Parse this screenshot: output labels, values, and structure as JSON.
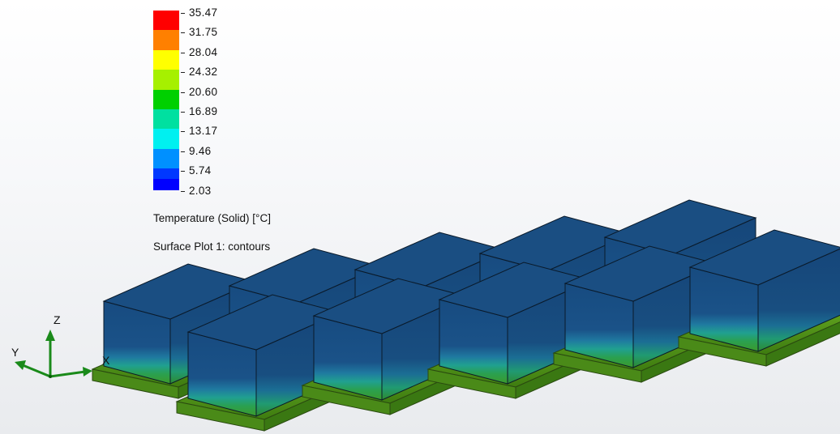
{
  "legend": {
    "values": [
      "35.47",
      "31.75",
      "28.04",
      "24.32",
      "20.60",
      "16.89",
      "13.17",
      "9.46",
      "5.74",
      "2.03"
    ],
    "colors": [
      "#ff0000",
      "#ff8000",
      "#ffff00",
      "#a6f000",
      "#00d000",
      "#00e0a0",
      "#00f0f0",
      "#0090ff",
      "#0038ff",
      "#0000ff"
    ],
    "title": "Temperature (Solid) [°C]",
    "plot_name": "Surface Plot 1: contours"
  },
  "triad": {
    "x_label": "X",
    "y_label": "Y",
    "z_label": "Z"
  },
  "colors": {
    "block_top": "#1a4e82",
    "block_side": "#174b7d",
    "base_plate": "#5aa020"
  }
}
